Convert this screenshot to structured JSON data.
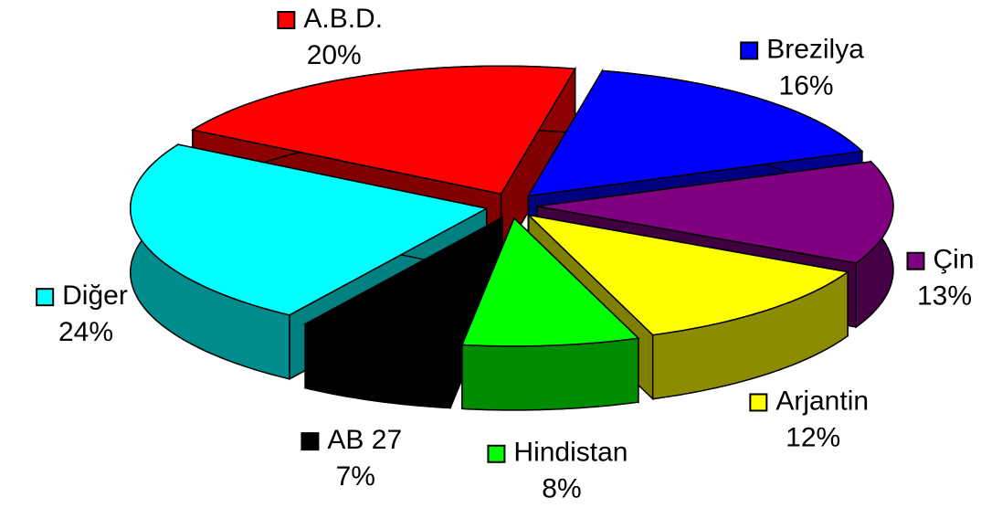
{
  "chart_data": {
    "type": "pie",
    "categories": [
      "A.B.D.",
      "Brezilya",
      "Çin",
      "Arjantin",
      "Hindistan",
      "AB 27",
      "Diğer"
    ],
    "values": [
      20,
      16,
      13,
      12,
      8,
      7,
      24
    ],
    "value_labels": [
      "20%",
      "16%",
      "13%",
      "12%",
      "8%",
      "7%",
      "24%"
    ],
    "colors": [
      "#ff0000",
      "#0000ff",
      "#800080",
      "#ffff00",
      "#00ff00",
      "#000000",
      "#00ffff"
    ]
  }
}
